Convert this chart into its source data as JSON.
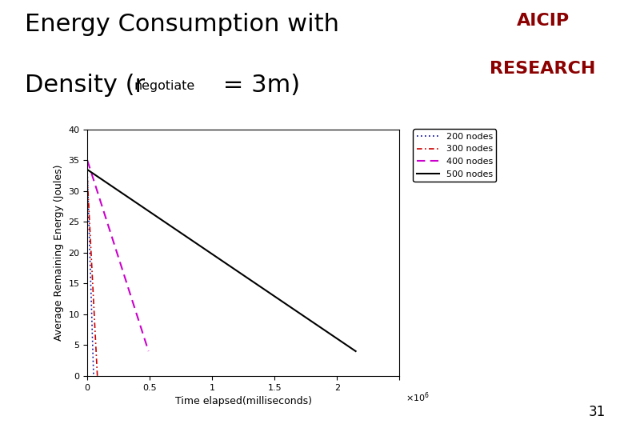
{
  "title_line1": "Energy Consumption with",
  "title_line2_pre": "Density (r",
  "title_subscript": "negotiate",
  "title_line2_suf": " = 3m)",
  "xlabel": "Time elapsed(milliseconds)",
  "ylabel": "Average Remaining Energy (Joules)",
  "xlim": [
    0,
    2500000
  ],
  "ylim": [
    0,
    40
  ],
  "xticks": [
    0,
    500000,
    1000000,
    1500000,
    2000000,
    2500000
  ],
  "xtick_labels": [
    "0",
    "0.5",
    "1",
    "1.5",
    "2",
    ""
  ],
  "yticks": [
    0,
    5,
    10,
    15,
    20,
    25,
    30,
    35,
    40
  ],
  "lines": [
    {
      "label": "200 nodes",
      "x": [
        0,
        50000
      ],
      "y": [
        33.0,
        0.0
      ],
      "color": "#000099",
      "linestyle": "dotted",
      "linewidth": 1.2
    },
    {
      "label": "300 nodes",
      "x": [
        0,
        80000
      ],
      "y": [
        32.0,
        0.0
      ],
      "color": "#cc0000",
      "linestyle": "dashdot",
      "linewidth": 1.2
    },
    {
      "label": "400 nodes",
      "x": [
        0,
        490000
      ],
      "y": [
        35.0,
        4.0
      ],
      "color": "#cc00cc",
      "linestyle": "dashed",
      "linewidth": 1.5
    },
    {
      "label": "500 nodes",
      "x": [
        0,
        2150000
      ],
      "y": [
        33.5,
        4.0
      ],
      "color": "#000000",
      "linestyle": "solid",
      "linewidth": 1.5
    }
  ],
  "background_color": "#ffffff",
  "title_fontsize": 22,
  "axis_fontsize": 9,
  "tick_fontsize": 8,
  "legend_fontsize": 8,
  "aicip_color": "#8B0000",
  "aicip_fontsize": 16,
  "gold_color": "#DAA520",
  "page_number": "31"
}
